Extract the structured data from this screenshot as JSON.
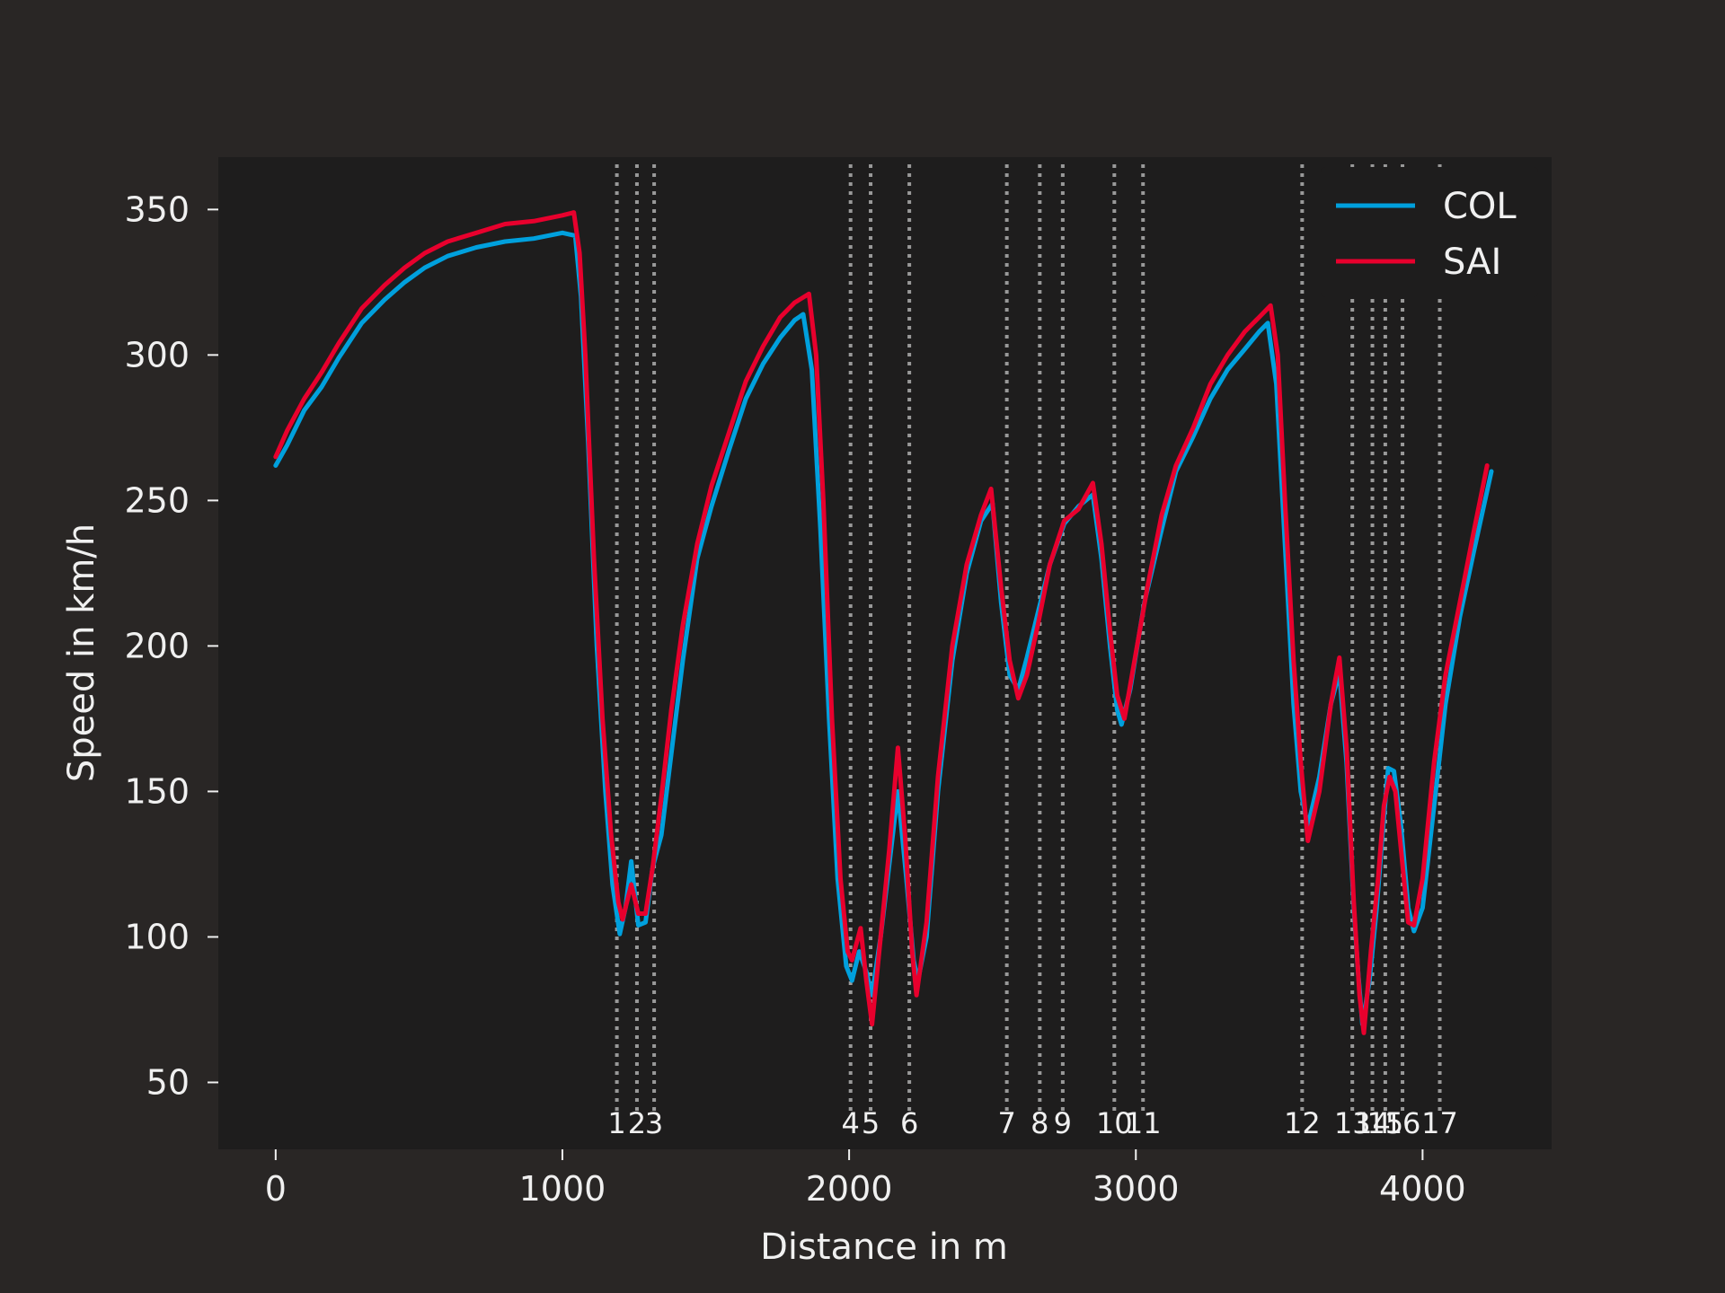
{
  "chart_data": {
    "type": "line",
    "title": "",
    "xlabel": "Distance in m",
    "ylabel": "Speed in km/h",
    "xlim": [
      -200,
      4450
    ],
    "ylim": [
      27,
      368
    ],
    "xticks": [
      0,
      1000,
      2000,
      3000,
      4000
    ],
    "yticks": [
      50,
      100,
      150,
      200,
      250,
      300,
      350
    ],
    "legend_position": "top-right",
    "colors": {
      "figure_bg": "#292625",
      "axes_bg": "#1e1d1d",
      "text": "#f0f0f0",
      "corner_line": "#999999"
    },
    "corners": [
      {
        "number": 1,
        "label": "1",
        "distance": 1190
      },
      {
        "number": 2,
        "label": "2",
        "distance": 1260
      },
      {
        "number": 3,
        "label": "3",
        "distance": 1320
      },
      {
        "number": 4,
        "label": "4",
        "distance": 2005
      },
      {
        "number": 5,
        "label": "5",
        "distance": 2075
      },
      {
        "number": 6,
        "label": "6",
        "distance": 2210
      },
      {
        "number": 7,
        "label": "7",
        "distance": 2550
      },
      {
        "number": 8,
        "label": "8",
        "distance": 2665
      },
      {
        "number": 9,
        "label": "9",
        "distance": 2745
      },
      {
        "number": 10,
        "label": "10",
        "distance": 2925
      },
      {
        "number": 11,
        "label": "11",
        "distance": 3025
      },
      {
        "number": 12,
        "label": "12",
        "distance": 3580
      },
      {
        "number": 13,
        "label": "13",
        "distance": 3755
      },
      {
        "number": 14,
        "label": "14",
        "distance": 3825
      },
      {
        "number": 15,
        "label": "15",
        "distance": 3870
      },
      {
        "number": 16,
        "label": "16",
        "distance": 3930
      },
      {
        "number": 17,
        "label": "17",
        "distance": 4060
      }
    ],
    "series": [
      {
        "name": "COL",
        "color": "#00a0dd",
        "points": [
          [
            0,
            262
          ],
          [
            40,
            269
          ],
          [
            100,
            281
          ],
          [
            160,
            289
          ],
          [
            220,
            299
          ],
          [
            300,
            311
          ],
          [
            380,
            319
          ],
          [
            450,
            325
          ],
          [
            520,
            330
          ],
          [
            600,
            334
          ],
          [
            700,
            337
          ],
          [
            800,
            339
          ],
          [
            900,
            340
          ],
          [
            1000,
            342
          ],
          [
            1045,
            341
          ],
          [
            1065,
            320
          ],
          [
            1090,
            270
          ],
          [
            1120,
            200
          ],
          [
            1150,
            150
          ],
          [
            1175,
            118
          ],
          [
            1200,
            101
          ],
          [
            1220,
            110
          ],
          [
            1240,
            126
          ],
          [
            1265,
            104
          ],
          [
            1290,
            105
          ],
          [
            1315,
            124
          ],
          [
            1345,
            135
          ],
          [
            1380,
            163
          ],
          [
            1420,
            195
          ],
          [
            1470,
            230
          ],
          [
            1520,
            248
          ],
          [
            1580,
            267
          ],
          [
            1640,
            285
          ],
          [
            1700,
            297
          ],
          [
            1760,
            306
          ],
          [
            1810,
            312
          ],
          [
            1840,
            314
          ],
          [
            1870,
            295
          ],
          [
            1900,
            240
          ],
          [
            1930,
            175
          ],
          [
            1960,
            120
          ],
          [
            1990,
            90
          ],
          [
            2010,
            85
          ],
          [
            2035,
            95
          ],
          [
            2060,
            88
          ],
          [
            2080,
            80
          ],
          [
            2110,
            100
          ],
          [
            2140,
            125
          ],
          [
            2170,
            150
          ],
          [
            2200,
            120
          ],
          [
            2225,
            92
          ],
          [
            2240,
            85
          ],
          [
            2270,
            100
          ],
          [
            2310,
            150
          ],
          [
            2360,
            195
          ],
          [
            2410,
            225
          ],
          [
            2460,
            243
          ],
          [
            2500,
            249
          ],
          [
            2530,
            215
          ],
          [
            2560,
            190
          ],
          [
            2590,
            185
          ],
          [
            2620,
            196
          ],
          [
            2660,
            212
          ],
          [
            2700,
            228
          ],
          [
            2750,
            242
          ],
          [
            2800,
            248
          ],
          [
            2850,
            252
          ],
          [
            2880,
            230
          ],
          [
            2910,
            200
          ],
          [
            2935,
            178
          ],
          [
            2950,
            173
          ],
          [
            2980,
            185
          ],
          [
            3030,
            215
          ],
          [
            3090,
            240
          ],
          [
            3140,
            260
          ],
          [
            3200,
            272
          ],
          [
            3260,
            285
          ],
          [
            3320,
            295
          ],
          [
            3380,
            302
          ],
          [
            3430,
            308
          ],
          [
            3460,
            311
          ],
          [
            3490,
            290
          ],
          [
            3520,
            235
          ],
          [
            3550,
            180
          ],
          [
            3575,
            150
          ],
          [
            3600,
            138
          ],
          [
            3640,
            155
          ],
          [
            3680,
            180
          ],
          [
            3710,
            191
          ],
          [
            3735,
            160
          ],
          [
            3760,
            110
          ],
          [
            3775,
            88
          ],
          [
            3790,
            70
          ],
          [
            3815,
            85
          ],
          [
            3840,
            110
          ],
          [
            3860,
            135
          ],
          [
            3880,
            158
          ],
          [
            3900,
            157
          ],
          [
            3925,
            138
          ],
          [
            3950,
            110
          ],
          [
            3970,
            102
          ],
          [
            4000,
            110
          ],
          [
            4040,
            145
          ],
          [
            4080,
            180
          ],
          [
            4130,
            210
          ],
          [
            4180,
            233
          ],
          [
            4240,
            260
          ]
        ]
      },
      {
        "name": "SAI",
        "color": "#e8002d",
        "points": [
          [
            0,
            265
          ],
          [
            40,
            274
          ],
          [
            100,
            285
          ],
          [
            160,
            294
          ],
          [
            220,
            304
          ],
          [
            300,
            316
          ],
          [
            380,
            324
          ],
          [
            450,
            330
          ],
          [
            520,
            335
          ],
          [
            600,
            339
          ],
          [
            700,
            342
          ],
          [
            800,
            345
          ],
          [
            900,
            346
          ],
          [
            1000,
            348
          ],
          [
            1040,
            349
          ],
          [
            1060,
            335
          ],
          [
            1080,
            300
          ],
          [
            1110,
            230
          ],
          [
            1140,
            175
          ],
          [
            1170,
            135
          ],
          [
            1195,
            112
          ],
          [
            1210,
            106
          ],
          [
            1240,
            118
          ],
          [
            1265,
            108
          ],
          [
            1290,
            108
          ],
          [
            1315,
            124
          ],
          [
            1345,
            148
          ],
          [
            1380,
            178
          ],
          [
            1420,
            207
          ],
          [
            1470,
            235
          ],
          [
            1520,
            255
          ],
          [
            1580,
            273
          ],
          [
            1640,
            291
          ],
          [
            1700,
            303
          ],
          [
            1760,
            313
          ],
          [
            1810,
            318
          ],
          [
            1860,
            321
          ],
          [
            1885,
            300
          ],
          [
            1910,
            250
          ],
          [
            1940,
            175
          ],
          [
            1970,
            120
          ],
          [
            1995,
            95
          ],
          [
            2010,
            92
          ],
          [
            2040,
            103
          ],
          [
            2060,
            85
          ],
          [
            2080,
            70
          ],
          [
            2110,
            100
          ],
          [
            2140,
            130
          ],
          [
            2170,
            165
          ],
          [
            2195,
            135
          ],
          [
            2220,
            95
          ],
          [
            2235,
            80
          ],
          [
            2270,
            105
          ],
          [
            2310,
            155
          ],
          [
            2360,
            200
          ],
          [
            2410,
            228
          ],
          [
            2460,
            245
          ],
          [
            2495,
            254
          ],
          [
            2530,
            220
          ],
          [
            2560,
            195
          ],
          [
            2590,
            182
          ],
          [
            2620,
            190
          ],
          [
            2660,
            208
          ],
          [
            2700,
            228
          ],
          [
            2750,
            243
          ],
          [
            2800,
            247
          ],
          [
            2850,
            256
          ],
          [
            2880,
            235
          ],
          [
            2910,
            205
          ],
          [
            2935,
            183
          ],
          [
            2960,
            175
          ],
          [
            2990,
            192
          ],
          [
            3040,
            220
          ],
          [
            3090,
            245
          ],
          [
            3140,
            262
          ],
          [
            3200,
            275
          ],
          [
            3260,
            290
          ],
          [
            3320,
            300
          ],
          [
            3380,
            308
          ],
          [
            3430,
            313
          ],
          [
            3470,
            317
          ],
          [
            3495,
            300
          ],
          [
            3520,
            250
          ],
          [
            3550,
            195
          ],
          [
            3575,
            160
          ],
          [
            3600,
            133
          ],
          [
            3640,
            150
          ],
          [
            3680,
            180
          ],
          [
            3710,
            196
          ],
          [
            3735,
            165
          ],
          [
            3760,
            112
          ],
          [
            3780,
            80
          ],
          [
            3795,
            67
          ],
          [
            3820,
            95
          ],
          [
            3845,
            120
          ],
          [
            3865,
            145
          ],
          [
            3885,
            155
          ],
          [
            3905,
            150
          ],
          [
            3930,
            125
          ],
          [
            3950,
            105
          ],
          [
            3970,
            104
          ],
          [
            4000,
            120
          ],
          [
            4040,
            160
          ],
          [
            4080,
            190
          ],
          [
            4130,
            215
          ],
          [
            4180,
            240
          ],
          [
            4225,
            262
          ]
        ]
      }
    ]
  }
}
